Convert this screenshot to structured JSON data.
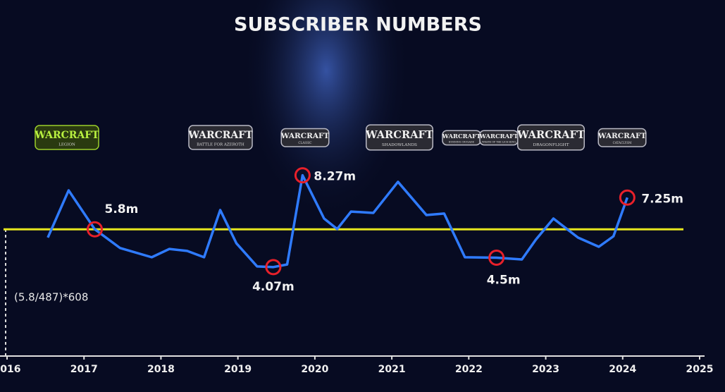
{
  "chart_data": {
    "type": "line",
    "title": "SUBSCRIBER NUMBERS",
    "x": [
      2016.53,
      2016.8,
      2017.14,
      2017.47,
      2017.88,
      2018.11,
      2018.34,
      2018.56,
      2018.77,
      2018.98,
      2019.25,
      2019.46,
      2019.64,
      2019.84,
      2020.12,
      2020.29,
      2020.47,
      2020.76,
      2021.08,
      2021.45,
      2021.68,
      2021.95,
      2022.36,
      2022.69,
      2022.87,
      2023.1,
      2023.42,
      2023.69,
      2023.88,
      2024.06
    ],
    "values": [
      5.42,
      7.58,
      5.8,
      4.94,
      4.52,
      4.9,
      4.81,
      4.52,
      6.68,
      5.16,
      4.1,
      4.07,
      4.19,
      8.27,
      6.29,
      5.81,
      6.61,
      6.55,
      7.97,
      6.45,
      6.52,
      4.52,
      4.5,
      4.42,
      5.32,
      6.29,
      5.42,
      5.0,
      5.48,
      7.25
    ],
    "value_labels": [
      null,
      null,
      "5.8m",
      null,
      null,
      null,
      null,
      null,
      null,
      null,
      null,
      "4.07m",
      null,
      "8.27m",
      null,
      null,
      null,
      null,
      null,
      null,
      null,
      null,
      "4.5m",
      null,
      null,
      null,
      null,
      null,
      null,
      "7.25m"
    ],
    "color": "#2f7bff",
    "marker_color": "#e8202a",
    "reference_line": {
      "value": 5.8,
      "color": "#e6e61e"
    },
    "annotation": "(5.8/487)*608",
    "xlim": [
      2016,
      2025
    ],
    "xticks": [
      2016,
      2017,
      2018,
      2019,
      2020,
      2021,
      2022,
      2023,
      2024,
      2025
    ],
    "ylim": [
      0,
      14
    ],
    "logos": [
      {
        "title": "WARCRAFT",
        "sub": "LEGION"
      },
      {
        "title": "WARCRAFT",
        "sub": "BATTLE FOR AZEROTH"
      },
      {
        "title": "WARCRAFT",
        "sub": "CLASSIC"
      },
      {
        "title": "WARCRAFT",
        "sub": "SHADOWLANDS"
      },
      {
        "title": "WARCRAFT",
        "sub": "BURNING CRUSADE"
      },
      {
        "title": "WARCRAFT",
        "sub": "WRATH OF THE LICH KING"
      },
      {
        "title": "WARCRAFT",
        "sub": "DRAGONFLIGHT"
      },
      {
        "title": "WARCRAFT",
        "sub": "CATACLYSM"
      }
    ]
  }
}
